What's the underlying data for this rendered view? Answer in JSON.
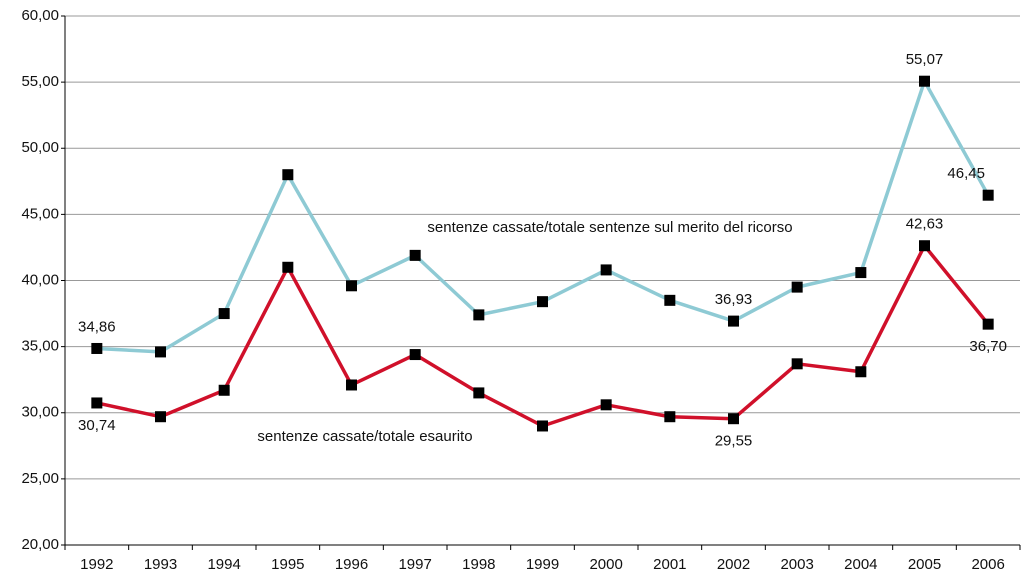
{
  "chart_data": {
    "type": "line",
    "categories": [
      "1992",
      "1993",
      "1994",
      "1995",
      "1996",
      "1997",
      "1998",
      "1999",
      "2000",
      "2001",
      "2002",
      "2003",
      "2004",
      "2005",
      "2006"
    ],
    "series": [
      {
        "name": "sentenze cassate/totale sentenze sul merito del ricorso",
        "color": "#8ecad4",
        "values": [
          34.86,
          34.6,
          37.5,
          48.0,
          39.6,
          41.9,
          37.4,
          38.4,
          40.8,
          38.5,
          36.93,
          39.5,
          40.6,
          55.07,
          46.45
        ],
        "value_labels": [
          "34,86",
          null,
          null,
          null,
          null,
          null,
          null,
          null,
          null,
          null,
          "36,93",
          null,
          null,
          "55,07",
          "46,45"
        ]
      },
      {
        "name": "sentenze cassate/totale esaurito",
        "color": "#d0102a",
        "values": [
          30.74,
          29.7,
          31.7,
          41.0,
          32.1,
          34.4,
          31.5,
          29.0,
          30.6,
          29.7,
          29.55,
          33.7,
          33.1,
          42.63,
          36.7
        ],
        "value_labels": [
          "30,74",
          null,
          null,
          null,
          null,
          null,
          null,
          null,
          null,
          null,
          "29,55",
          null,
          null,
          "42,63",
          "36,70"
        ]
      }
    ],
    "ylim": [
      20,
      60
    ],
    "yticks": [
      {
        "value": 20,
        "label": "20,00"
      },
      {
        "value": 25,
        "label": "25,00"
      },
      {
        "value": 30,
        "label": "30,00"
      },
      {
        "value": 35,
        "label": "35,00"
      },
      {
        "value": 40,
        "label": "40,00"
      },
      {
        "value": 45,
        "label": "45,00"
      },
      {
        "value": 50,
        "label": "50,00"
      },
      {
        "value": 55,
        "label": "55,00"
      },
      {
        "value": 60,
        "label": "60,00"
      }
    ],
    "grid": true
  }
}
